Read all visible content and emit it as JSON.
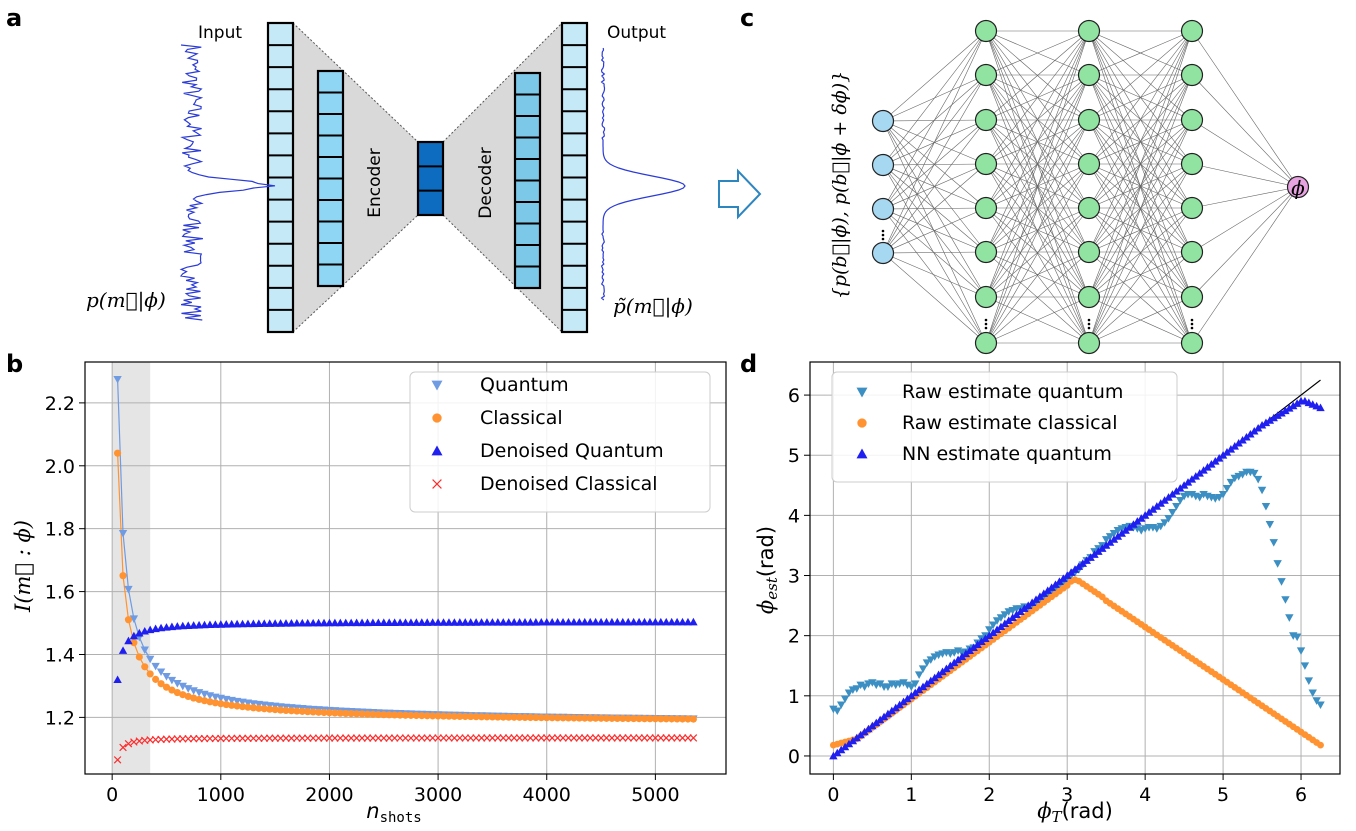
{
  "panels": {
    "a": "a",
    "b": "b",
    "c": "c",
    "d": "d"
  },
  "autoencoder": {
    "input_label": "Input",
    "output_label": "Output",
    "encoder_label": "Encoder",
    "decoder_label": "Decoder",
    "input_formula": "p(m⃗|ϕ)",
    "output_formula": "p̃(m⃗|ϕ)",
    "colors": {
      "outer": "#c6e9f7",
      "inner": "#8fd6f4",
      "latent": "#0e6cc0",
      "decoder_inner": "#7cc8e8",
      "trapezoid": "#d9d9d9",
      "signal": "#2b3bd6",
      "arrow": "#2e86c1"
    }
  },
  "network": {
    "input_formula": "{p(b⃗|ϕ), p(b⃗|ϕ + δϕ)}",
    "output_node_label": "ϕ",
    "input_node_color": "#a6d8f2",
    "hidden_node_color": "#90e3a0",
    "output_node_color": "#e7a3e0"
  },
  "colors": {
    "quantum": "#6f9be3",
    "classical": "#ff9331",
    "denoised_quantum": "#1f1ff0",
    "denoised_classical": "#ff2b2b",
    "raw_quantum": "#3b8fc2",
    "raw_classical": "#ff9331",
    "nn_quantum": "#1f1ff0",
    "identity_line": "#000000",
    "shade": "#e5e5e5"
  },
  "chart_data": [
    {
      "type": "scatter",
      "panel": "b",
      "xlabel": "n",
      "xlabel_sub": "shots",
      "ylabel": "I(m⃗ : ϕ)",
      "xlim": [
        -250,
        5650
      ],
      "ylim": [
        1.02,
        2.33
      ],
      "xticks": [
        0,
        1000,
        2000,
        3000,
        4000,
        5000
      ],
      "yticks": [
        1.2,
        1.4,
        1.6,
        1.8,
        2.0,
        2.2
      ],
      "shaded_region": [
        0,
        350
      ],
      "grid": true,
      "legend_position": "top-right",
      "x_range": {
        "start": 50,
        "end": 5350,
        "step": 50
      },
      "series": [
        {
          "name": "Quantum",
          "marker": "triangle-down",
          "connected_region": [
            50,
            350
          ],
          "model": {
            "kind": "decay",
            "base": 1.175,
            "amp": 1.1,
            "xref": 50,
            "power": 0.85
          },
          "values_at": {
            "50": 2.275,
            "100": 1.85,
            "150": 1.65,
            "200": 1.56,
            "300": 1.46,
            "1000": 1.26,
            "2000": 1.205,
            "3000": 1.19,
            "5350": 1.175
          }
        },
        {
          "name": "Classical",
          "marker": "circle",
          "connected_region": [
            50,
            350
          ],
          "model": {
            "kind": "decay",
            "base": 1.18,
            "amp": 0.86,
            "xref": 50,
            "power": 0.87
          },
          "values_at": {
            "50": 2.04,
            "100": 1.7,
            "150": 1.56,
            "200": 1.48,
            "300": 1.41,
            "1000": 1.25,
            "2000": 1.2,
            "3000": 1.19,
            "5350": 1.18
          }
        },
        {
          "name": "Denoised Quantum",
          "marker": "triangle-up",
          "model": {
            "kind": "rise",
            "base": 1.505,
            "amp": 0.185,
            "xref": 50,
            "power": 1.0
          },
          "values_at": {
            "50": 1.32,
            "100": 1.41,
            "200": 1.45,
            "500": 1.48,
            "1000": 1.5,
            "5350": 1.505
          }
        },
        {
          "name": "Denoised Classical",
          "marker": "x",
          "model": {
            "kind": "rise",
            "base": 1.135,
            "amp": 0.07,
            "xref": 50,
            "power": 1.2
          },
          "values_at": {
            "50": 1.065,
            "100": 1.1,
            "200": 1.12,
            "500": 1.13,
            "5350": 1.135
          }
        }
      ]
    },
    {
      "type": "scatter",
      "panel": "d",
      "xlabel": "ϕ_T(rad)",
      "ylabel": "ϕ_est(rad)",
      "xlim": [
        -0.3,
        6.5
      ],
      "ylim": [
        -0.3,
        6.55
      ],
      "xticks": [
        0,
        1,
        2,
        3,
        4,
        5,
        6
      ],
      "yticks": [
        0,
        1,
        2,
        3,
        4,
        5,
        6
      ],
      "grid": true,
      "legend_position": "top-left",
      "identity_line": [
        0,
        6.25
      ],
      "series": [
        {
          "name": "Raw estimate quantum",
          "marker": "triangle-down",
          "points": [
            [
              0.0,
              0.78
            ],
            [
              0.05,
              0.75
            ],
            [
              0.1,
              0.85
            ],
            [
              0.15,
              0.95
            ],
            [
              0.2,
              1.05
            ],
            [
              0.25,
              1.1
            ],
            [
              0.3,
              1.12
            ],
            [
              0.35,
              1.18
            ],
            [
              0.4,
              1.15
            ],
            [
              0.45,
              1.2
            ],
            [
              0.5,
              1.22
            ],
            [
              0.55,
              1.18
            ],
            [
              0.6,
              1.2
            ],
            [
              0.65,
              1.15
            ],
            [
              0.7,
              1.15
            ],
            [
              0.75,
              1.2
            ],
            [
              0.8,
              1.18
            ],
            [
              0.85,
              1.2
            ],
            [
              0.9,
              1.22
            ],
            [
              0.95,
              1.18
            ],
            [
              1.0,
              1.15
            ],
            [
              1.05,
              1.2
            ],
            [
              1.1,
              1.35
            ],
            [
              1.15,
              1.45
            ],
            [
              1.2,
              1.55
            ],
            [
              1.25,
              1.6
            ],
            [
              1.3,
              1.65
            ],
            [
              1.35,
              1.68
            ],
            [
              1.4,
              1.7
            ],
            [
              1.45,
              1.72
            ],
            [
              1.5,
              1.7
            ],
            [
              1.55,
              1.72
            ],
            [
              1.6,
              1.75
            ],
            [
              1.65,
              1.72
            ],
            [
              1.7,
              1.73
            ],
            [
              1.75,
              1.78
            ],
            [
              1.8,
              1.8
            ],
            [
              1.85,
              1.88
            ],
            [
              1.9,
              1.95
            ],
            [
              1.95,
              2.0
            ],
            [
              2.0,
              2.1
            ],
            [
              2.05,
              2.18
            ],
            [
              2.1,
              2.25
            ],
            [
              2.15,
              2.3
            ],
            [
              2.2,
              2.35
            ],
            [
              2.25,
              2.4
            ],
            [
              2.3,
              2.42
            ],
            [
              2.35,
              2.45
            ],
            [
              2.4,
              2.45
            ],
            [
              2.45,
              2.48
            ],
            [
              2.5,
              2.45
            ],
            [
              2.55,
              2.48
            ],
            [
              2.6,
              2.52
            ],
            [
              2.65,
              2.55
            ],
            [
              2.7,
              2.6
            ],
            [
              2.75,
              2.65
            ],
            [
              2.8,
              2.7
            ],
            [
              2.85,
              2.75
            ],
            [
              2.9,
              2.8
            ],
            [
              2.95,
              2.88
            ],
            [
              3.0,
              2.92
            ],
            [
              3.05,
              3.0
            ],
            [
              3.1,
              3.05
            ],
            [
              3.15,
              3.1
            ],
            [
              3.2,
              3.18
            ],
            [
              3.25,
              3.25
            ],
            [
              3.3,
              3.3
            ],
            [
              3.35,
              3.4
            ],
            [
              3.4,
              3.45
            ],
            [
              3.45,
              3.5
            ],
            [
              3.5,
              3.6
            ],
            [
              3.55,
              3.65
            ],
            [
              3.6,
              3.7
            ],
            [
              3.65,
              3.75
            ],
            [
              3.7,
              3.78
            ],
            [
              3.75,
              3.8
            ],
            [
              3.8,
              3.82
            ],
            [
              3.85,
              3.8
            ],
            [
              3.9,
              3.78
            ],
            [
              3.95,
              3.75
            ],
            [
              4.0,
              3.78
            ],
            [
              4.05,
              3.8
            ],
            [
              4.1,
              3.8
            ],
            [
              4.15,
              3.78
            ],
            [
              4.2,
              3.82
            ],
            [
              4.25,
              3.88
            ],
            [
              4.3,
              3.95
            ],
            [
              4.35,
              4.05
            ],
            [
              4.4,
              4.15
            ],
            [
              4.45,
              4.25
            ],
            [
              4.5,
              4.32
            ],
            [
              4.55,
              4.35
            ],
            [
              4.6,
              4.35
            ],
            [
              4.65,
              4.32
            ],
            [
              4.7,
              4.3
            ],
            [
              4.75,
              4.35
            ],
            [
              4.8,
              4.32
            ],
            [
              4.85,
              4.3
            ],
            [
              4.9,
              4.28
            ],
            [
              4.95,
              4.3
            ],
            [
              5.0,
              4.35
            ],
            [
              5.05,
              4.45
            ],
            [
              5.1,
              4.55
            ],
            [
              5.15,
              4.62
            ],
            [
              5.2,
              4.65
            ],
            [
              5.25,
              4.68
            ],
            [
              5.3,
              4.72
            ],
            [
              5.35,
              4.72
            ],
            [
              5.4,
              4.7
            ],
            [
              5.45,
              4.6
            ],
            [
              5.5,
              4.42
            ],
            [
              5.55,
              4.15
            ],
            [
              5.6,
              3.85
            ],
            [
              5.65,
              3.55
            ],
            [
              5.7,
              3.2
            ],
            [
              5.75,
              2.9
            ],
            [
              5.8,
              2.6
            ],
            [
              5.85,
              2.3
            ],
            [
              5.9,
              2.0
            ],
            [
              5.95,
              1.98
            ],
            [
              6.0,
              1.75
            ],
            [
              6.05,
              1.5
            ],
            [
              6.1,
              1.25
            ],
            [
              6.15,
              1.05
            ],
            [
              6.2,
              0.92
            ],
            [
              6.25,
              0.85
            ]
          ]
        },
        {
          "name": "Raw estimate classical",
          "marker": "circle",
          "model": {
            "kind": "tent",
            "start": 0.18,
            "peak_x": 3.1,
            "peak_y": 2.93,
            "end_y": 0.18,
            "x_end": 6.25,
            "step": 0.05
          },
          "values_at": {
            "0": 0.18,
            "1": 1.0,
            "2": 2.0,
            "3": 2.9,
            "3.1": 2.93,
            "4": 2.25,
            "5": 1.3,
            "6": 0.25
          }
        },
        {
          "name": "NN estimate quantum",
          "marker": "triangle-up",
          "model": {
            "kind": "near_identity",
            "saturation_start": 5.5,
            "saturation_value": 5.9,
            "x_end": 6.25,
            "step": 0.05
          },
          "values_at": {
            "0": 0.0,
            "1": 1.0,
            "2": 2.0,
            "3": 3.0,
            "4": 4.0,
            "5": 5.0,
            "5.5": 5.5,
            "6": 5.88,
            "6.25": 5.78
          }
        }
      ]
    }
  ]
}
